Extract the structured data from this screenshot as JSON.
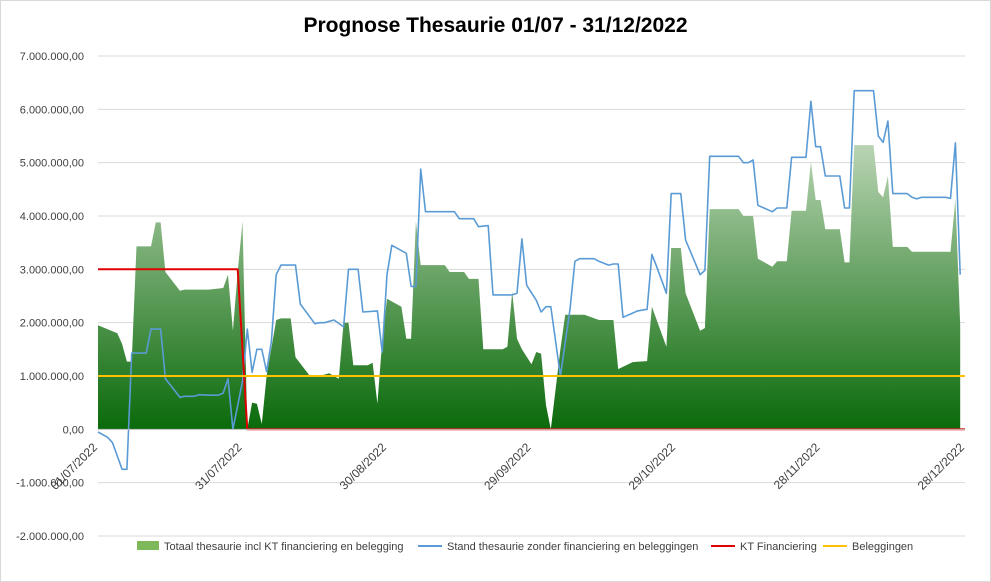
{
  "chart_data": {
    "type": "area",
    "title": "Prognose Thesaurie 01/07 - 31/12/2022",
    "xlabel": "",
    "ylabel": "",
    "ylim": [
      -2000000,
      7000000
    ],
    "ytick_labels": [
      "-2.000.000,00",
      "-1.000.000,00",
      "0,00",
      "1.000.000,00",
      "2.000.000,00",
      "3.000.000,00",
      "4.000.000,00",
      "5.000.000,00",
      "6.000.000,00",
      "7.000.000,00"
    ],
    "xtick_labels": [
      "01/07/2022",
      "31/07/2022",
      "30/08/2022",
      "29/09/2022",
      "29/10/2022",
      "28/11/2022",
      "28/12/2022"
    ],
    "xtick_days": [
      0,
      30,
      60,
      90,
      120,
      150,
      180
    ],
    "xlim_days": [
      0,
      180
    ],
    "grid": "horizontal",
    "legend_position": "bottom",
    "series": [
      {
        "name": "Totaal thesaurie incl KT financiering en belegging",
        "style": "area",
        "color": "#2e8b2e",
        "points": [
          [
            0,
            1950000
          ],
          [
            4,
            1800000
          ],
          [
            5,
            1600000
          ],
          [
            6,
            1270000
          ],
          [
            7,
            1270000
          ],
          [
            8,
            3430000
          ],
          [
            10,
            3430000
          ],
          [
            11,
            3430000
          ],
          [
            12,
            3880000
          ],
          [
            13,
            3880000
          ],
          [
            14,
            2950000
          ],
          [
            17,
            2600000
          ],
          [
            18,
            2620000
          ],
          [
            23,
            2620000
          ],
          [
            26,
            2650000
          ],
          [
            27,
            2900000
          ],
          [
            28,
            1850000
          ],
          [
            29,
            2950000
          ],
          [
            30,
            3900000
          ],
          [
            31,
            0
          ],
          [
            32,
            500000
          ],
          [
            33,
            480000
          ],
          [
            34,
            100000
          ],
          [
            35,
            1000000
          ],
          [
            37,
            2050000
          ],
          [
            38,
            2080000
          ],
          [
            40,
            2080000
          ],
          [
            41,
            1350000
          ],
          [
            44,
            1000000
          ],
          [
            46,
            1000000
          ],
          [
            48,
            1050000
          ],
          [
            50,
            950000
          ],
          [
            51,
            2000000
          ],
          [
            52,
            2000000
          ],
          [
            53,
            1200000
          ],
          [
            56,
            1200000
          ],
          [
            57,
            1250000
          ],
          [
            58,
            480000
          ],
          [
            59,
            1650000
          ],
          [
            60,
            2450000
          ],
          [
            63,
            2300000
          ],
          [
            64,
            1700000
          ],
          [
            65,
            1700000
          ],
          [
            66,
            3900000
          ],
          [
            67,
            3080000
          ],
          [
            72,
            3080000
          ],
          [
            73,
            2950000
          ],
          [
            76,
            2950000
          ],
          [
            77,
            2820000
          ],
          [
            79,
            2820000
          ],
          [
            80,
            1500000
          ],
          [
            84,
            1500000
          ],
          [
            85,
            1550000
          ],
          [
            86,
            2580000
          ],
          [
            87,
            1700000
          ],
          [
            88,
            1500000
          ],
          [
            90,
            1220000
          ],
          [
            91,
            1450000
          ],
          [
            92,
            1420000
          ],
          [
            93,
            450000
          ],
          [
            94,
            0
          ],
          [
            96,
            1500000
          ],
          [
            97,
            2150000
          ],
          [
            101,
            2150000
          ],
          [
            104,
            2050000
          ],
          [
            107,
            2050000
          ],
          [
            108,
            1130000
          ],
          [
            111,
            1260000
          ],
          [
            114,
            1280000
          ],
          [
            115,
            2300000
          ],
          [
            116,
            2050000
          ],
          [
            118,
            1550000
          ],
          [
            119,
            3400000
          ],
          [
            121,
            3400000
          ],
          [
            122,
            2550000
          ],
          [
            125,
            1850000
          ],
          [
            126,
            1900000
          ],
          [
            127,
            4130000
          ],
          [
            131,
            4130000
          ],
          [
            133,
            4130000
          ],
          [
            134,
            4000000
          ],
          [
            136,
            4000000
          ],
          [
            137,
            3200000
          ],
          [
            140,
            3050000
          ],
          [
            141,
            3150000
          ],
          [
            143,
            3150000
          ],
          [
            144,
            4100000
          ],
          [
            147,
            4100000
          ],
          [
            148,
            5020000
          ],
          [
            149,
            4300000
          ],
          [
            150,
            4300000
          ],
          [
            151,
            3750000
          ],
          [
            154,
            3750000
          ],
          [
            155,
            3130000
          ],
          [
            156,
            3130000
          ],
          [
            157,
            5330000
          ],
          [
            161,
            5330000
          ],
          [
            162,
            4450000
          ],
          [
            163,
            4350000
          ],
          [
            164,
            4750000
          ],
          [
            165,
            3420000
          ],
          [
            168,
            3420000
          ],
          [
            169,
            3330000
          ],
          [
            175,
            3330000
          ],
          [
            177,
            3330000
          ],
          [
            178,
            4320000
          ],
          [
            179,
            1950000
          ]
        ]
      },
      {
        "name": "Stand thesaurie zonder financiering en beleggingen",
        "style": "line",
        "color": "#5b9bd5",
        "points": [
          [
            0,
            -50000
          ],
          [
            2,
            -150000
          ],
          [
            3,
            -250000
          ],
          [
            4,
            -500000
          ],
          [
            5,
            -750000
          ],
          [
            6,
            -750000
          ],
          [
            7,
            1430000
          ],
          [
            10,
            1430000
          ],
          [
            11,
            1880000
          ],
          [
            13,
            1880000
          ],
          [
            14,
            950000
          ],
          [
            17,
            600000
          ],
          [
            18,
            620000
          ],
          [
            20,
            620000
          ],
          [
            21,
            650000
          ],
          [
            23,
            640000
          ],
          [
            25,
            640000
          ],
          [
            26,
            680000
          ],
          [
            27,
            950000
          ],
          [
            28,
            0
          ],
          [
            30,
            900000
          ],
          [
            31,
            1880000
          ],
          [
            32,
            1070000
          ],
          [
            33,
            1500000
          ],
          [
            34,
            1500000
          ],
          [
            35,
            1080000
          ],
          [
            36,
            1650000
          ],
          [
            37,
            2900000
          ],
          [
            38,
            3080000
          ],
          [
            41,
            3080000
          ],
          [
            42,
            2350000
          ],
          [
            45,
            1980000
          ],
          [
            46,
            2000000
          ],
          [
            47,
            2000000
          ],
          [
            49,
            2050000
          ],
          [
            51,
            1920000
          ],
          [
            52,
            3000000
          ],
          [
            54,
            3000000
          ],
          [
            55,
            2200000
          ],
          [
            58,
            2220000
          ],
          [
            59,
            1450000
          ],
          [
            60,
            2900000
          ],
          [
            61,
            3450000
          ],
          [
            64,
            3300000
          ],
          [
            65,
            2680000
          ],
          [
            66,
            2680000
          ],
          [
            67,
            4880000
          ],
          [
            68,
            4080000
          ],
          [
            72,
            4080000
          ],
          [
            74,
            4080000
          ],
          [
            75,
            3950000
          ],
          [
            78,
            3950000
          ],
          [
            79,
            3800000
          ],
          [
            81,
            3820000
          ],
          [
            82,
            2520000
          ],
          [
            86,
            2520000
          ],
          [
            87,
            2550000
          ],
          [
            88,
            3570000
          ],
          [
            89,
            2700000
          ],
          [
            91,
            2420000
          ],
          [
            92,
            2200000
          ],
          [
            93,
            2300000
          ],
          [
            94,
            2300000
          ],
          [
            96,
            1000000
          ],
          [
            98,
            2250000
          ],
          [
            99,
            3150000
          ],
          [
            100,
            3200000
          ],
          [
            103,
            3200000
          ],
          [
            104,
            3150000
          ],
          [
            106,
            3080000
          ],
          [
            107,
            3100000
          ],
          [
            108,
            3100000
          ],
          [
            109,
            2100000
          ],
          [
            111,
            2180000
          ],
          [
            112,
            2220000
          ],
          [
            114,
            2250000
          ],
          [
            115,
            3280000
          ],
          [
            116,
            3050000
          ],
          [
            118,
            2550000
          ],
          [
            119,
            4420000
          ],
          [
            121,
            4420000
          ],
          [
            122,
            3550000
          ],
          [
            125,
            2900000
          ],
          [
            126,
            2980000
          ],
          [
            127,
            5120000
          ],
          [
            131,
            5120000
          ],
          [
            133,
            5120000
          ],
          [
            134,
            5000000
          ],
          [
            135,
            5000000
          ],
          [
            136,
            5050000
          ],
          [
            137,
            4200000
          ],
          [
            140,
            4080000
          ],
          [
            141,
            4150000
          ],
          [
            143,
            4150000
          ],
          [
            144,
            5100000
          ],
          [
            147,
            5100000
          ],
          [
            148,
            6150000
          ],
          [
            149,
            5300000
          ],
          [
            150,
            5300000
          ],
          [
            151,
            4750000
          ],
          [
            154,
            4750000
          ],
          [
            155,
            4150000
          ],
          [
            156,
            4150000
          ],
          [
            157,
            6350000
          ],
          [
            161,
            6350000
          ],
          [
            162,
            5500000
          ],
          [
            163,
            5380000
          ],
          [
            164,
            5780000
          ],
          [
            165,
            4420000
          ],
          [
            168,
            4420000
          ],
          [
            169,
            4350000
          ],
          [
            170,
            4320000
          ],
          [
            171,
            4350000
          ],
          [
            176,
            4350000
          ],
          [
            177,
            4330000
          ],
          [
            178,
            5370000
          ],
          [
            179,
            2900000
          ]
        ]
      },
      {
        "name": "KT Financiering",
        "style": "line",
        "color": "#e00000",
        "points": [
          [
            0,
            3000000
          ],
          [
            28,
            3000000
          ],
          [
            29,
            3000000
          ],
          [
            31,
            0
          ],
          [
            180,
            0
          ]
        ]
      },
      {
        "name": "Beleggingen",
        "style": "line",
        "color": "#ffc000",
        "points": [
          [
            0,
            1000000
          ],
          [
            180,
            1000000
          ]
        ]
      }
    ]
  }
}
